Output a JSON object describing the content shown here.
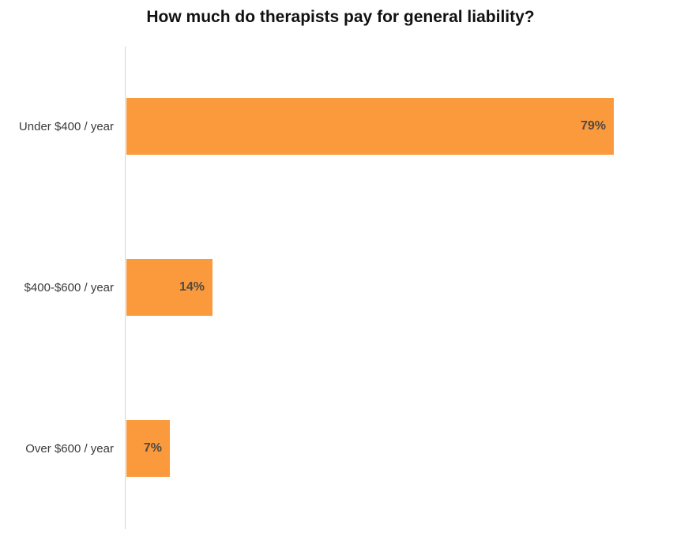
{
  "title": "How much do therapists pay for general liability?",
  "chart_data": {
    "type": "bar",
    "orientation": "horizontal",
    "title": "How much do therapists pay for general liability?",
    "categories": [
      "Under $400 / year",
      "$400-$600 / year",
      "Over $600 / year"
    ],
    "values": [
      79,
      14,
      7
    ],
    "value_labels": [
      "79%",
      "14%",
      "7%"
    ],
    "xlabel": "",
    "ylabel": "",
    "xlim": [
      0,
      100
    ],
    "grid": false,
    "legend": false,
    "value_label_position": "inside-end",
    "colors": {
      "bar": "#fb993d",
      "value_label": "#4e4a42",
      "category_label": "#3a3a3a",
      "title": "#111111",
      "axis_line": "#d4d4d4",
      "background": "#ffffff"
    }
  }
}
